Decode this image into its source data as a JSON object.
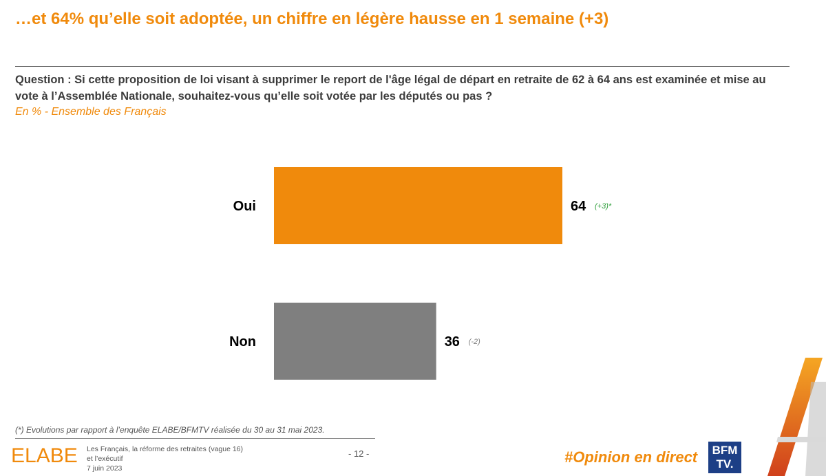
{
  "title": "…et 64% qu’elle soit adoptée, un chiffre en légère hausse en 1 semaine (+3)",
  "question": "Question : Si cette proposition de loi visant à supprimer le report de l'âge légal de départ en retraite de 62 à 64 ans est examinée et mise au vote à l’Assemblée Nationale, souhaitez-vous qu’elle soit votée par les députés ou pas ?",
  "subtitle": "En % - Ensemble des Français",
  "chart_data": {
    "type": "bar",
    "orientation": "horizontal",
    "categories": [
      "Oui",
      "Non"
    ],
    "values": [
      64,
      36
    ],
    "changes": [
      "(+3)*",
      "(-2)"
    ],
    "colors": [
      "#f08a0c",
      "#7f7f7f"
    ],
    "change_colors": [
      "#2e9e3a",
      "#7f7f7f"
    ],
    "xlim": [
      0,
      100
    ],
    "grid": false
  },
  "footnote": "(*) Evolutions par rapport à l’enquête ELABE/BFMTV réalisée du 30 au 31 mai 2023.",
  "footer": {
    "logo": "ELABE",
    "meta_line1": "Les Français, la réforme des retraites (vague 16)",
    "meta_line2": "et l’exécutif",
    "meta_line3": "7 juin 2023",
    "page": "- 12 -",
    "hashtag": "#Opinion en direct",
    "bfm_top": "BFM",
    "bfm_bottom": "TV."
  }
}
